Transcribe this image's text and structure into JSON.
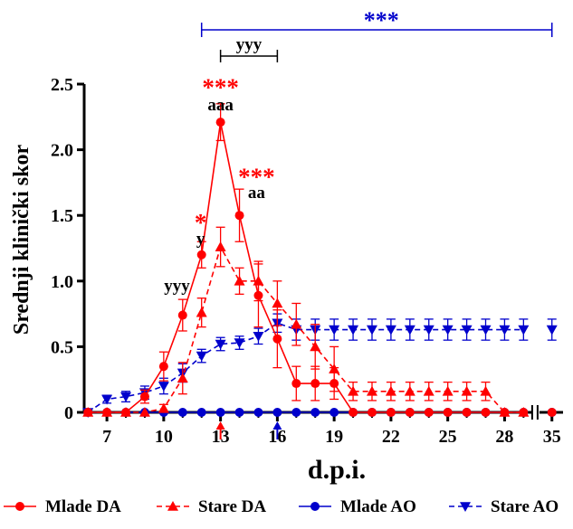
{
  "chart_data": {
    "type": "line",
    "xlabel": "d.p.i.",
    "ylabel": "Srednji klinički skor",
    "ylim": [
      0,
      2.5
    ],
    "y_ticks": [
      "0",
      "0.5",
      "1.0",
      "1.5",
      "2.0",
      "2.5"
    ],
    "x_ticks": [
      "7",
      "10",
      "13",
      "16",
      "19",
      "22",
      "25",
      "28",
      "35"
    ],
    "x_minor_ticks": [
      "8",
      "9",
      "11",
      "12",
      "14",
      "15",
      "17",
      "18",
      "20",
      "21",
      "23",
      "24",
      "26",
      "27",
      "29"
    ],
    "x_range": [
      5.8,
      30.8
    ],
    "x_break_after": 29.6,
    "series": [
      {
        "name": "Mlade DA",
        "color": "#ff0000",
        "marker": "circle",
        "dashed": false,
        "x": [
          6,
          7,
          8,
          9,
          10,
          11,
          12,
          13,
          14,
          15,
          16,
          17,
          18,
          19,
          20,
          21,
          22,
          23,
          24,
          25,
          26,
          27,
          28,
          29,
          35
        ],
        "y": [
          0,
          0,
          0,
          0.12,
          0.35,
          0.74,
          1.2,
          2.21,
          1.5,
          0.89,
          0.56,
          0.22,
          0.22,
          0.22,
          0,
          0,
          0,
          0,
          0,
          0,
          0,
          0,
          0,
          0,
          0
        ],
        "err": [
          0,
          0,
          0,
          0.05,
          0.11,
          0.12,
          0.1,
          0.14,
          0.2,
          0.24,
          0.22,
          0.13,
          0.13,
          0.12,
          0,
          0,
          0,
          0,
          0,
          0,
          0,
          0,
          0,
          0,
          0
        ]
      },
      {
        "name": "Stare DA",
        "color": "#ff0000",
        "marker": "triangle-up",
        "dashed": true,
        "x": [
          6,
          7,
          8,
          9,
          10,
          11,
          12,
          13,
          14,
          15,
          16,
          17,
          18,
          19,
          20,
          21,
          22,
          23,
          24,
          25,
          26,
          27,
          28,
          29
        ],
        "y": [
          0,
          0,
          0,
          0,
          0.03,
          0.26,
          0.76,
          1.26,
          1.0,
          1.0,
          0.83,
          0.67,
          0.5,
          0.33,
          0.16,
          0.16,
          0.16,
          0.16,
          0.16,
          0.16,
          0.16,
          0.16,
          0,
          0
        ],
        "err": [
          0,
          0,
          0,
          0,
          0.03,
          0.12,
          0.11,
          0.15,
          0.1,
          0.15,
          0.17,
          0.16,
          0.17,
          0.17,
          0.07,
          0.07,
          0.07,
          0.07,
          0.07,
          0.07,
          0.07,
          0.07,
          0,
          0
        ]
      },
      {
        "name": "Mlade AO",
        "color": "#0000cc",
        "marker": "circle",
        "dashed": false,
        "x": [
          6,
          7,
          8,
          9,
          10,
          11,
          12,
          13,
          14,
          15,
          16,
          17,
          18,
          19,
          20,
          21,
          22,
          23,
          24,
          25,
          26,
          27,
          28,
          29,
          35
        ],
        "y": [
          0,
          0,
          0,
          0,
          0,
          0,
          0,
          0,
          0,
          0,
          0,
          0,
          0,
          0,
          0,
          0,
          0,
          0,
          0,
          0,
          0,
          0,
          0,
          0,
          0
        ],
        "err": [
          0,
          0,
          0,
          0,
          0,
          0,
          0,
          0,
          0,
          0,
          0,
          0,
          0,
          0,
          0,
          0,
          0,
          0,
          0,
          0,
          0,
          0,
          0,
          0,
          0
        ]
      },
      {
        "name": "Stare AO",
        "color": "#0000cc",
        "marker": "triangle-down",
        "dashed": true,
        "x": [
          6,
          7,
          8,
          9,
          10,
          11,
          12,
          13,
          14,
          15,
          16,
          17,
          18,
          19,
          20,
          21,
          22,
          23,
          24,
          25,
          26,
          27,
          28,
          29,
          35
        ],
        "y": [
          0,
          0.1,
          0.12,
          0.15,
          0.2,
          0.3,
          0.43,
          0.52,
          0.53,
          0.58,
          0.68,
          0.63,
          0.63,
          0.63,
          0.63,
          0.63,
          0.63,
          0.63,
          0.63,
          0.63,
          0.63,
          0.63,
          0.63,
          0.63,
          0.63
        ],
        "err": [
          0,
          0.03,
          0.04,
          0.05,
          0.06,
          0.07,
          0.05,
          0.05,
          0.05,
          0.06,
          0.07,
          0.08,
          0.08,
          0.08,
          0.08,
          0.08,
          0.08,
          0.08,
          0.08,
          0.08,
          0.08,
          0.08,
          0.08,
          0.08,
          0.08
        ]
      }
    ],
    "annotations": {
      "brackets": [
        {
          "label": "***",
          "x_from": 12,
          "x_to": 35,
          "color": "#0000cc"
        },
        {
          "label": "yyy",
          "x_from": 13,
          "x_to": 16,
          "color": "#000000"
        }
      ],
      "labels": [
        {
          "text": "***",
          "x": 13,
          "y": 2.51,
          "color": "#ff0000",
          "size": "large"
        },
        {
          "text": "aaa",
          "x": 13,
          "y": 2.35,
          "color": "#000000",
          "size": "normal"
        },
        {
          "text": "***",
          "x": 14.9,
          "y": 1.83,
          "color": "#ff0000",
          "size": "large"
        },
        {
          "text": "aa",
          "x": 14.9,
          "y": 1.68,
          "color": "#000000",
          "size": "normal"
        },
        {
          "text": "*",
          "x": 11.95,
          "y": 1.48,
          "color": "#ff0000",
          "size": "large"
        },
        {
          "text": "y",
          "x": 11.95,
          "y": 1.33,
          "color": "#000000",
          "size": "normal"
        },
        {
          "text": "yyy",
          "x": 10.7,
          "y": 0.97,
          "color": "#000000",
          "size": "normal"
        }
      ],
      "arrows": [
        {
          "x": 13,
          "color": "#ff0000"
        },
        {
          "x": 16,
          "color": "#0000cc"
        }
      ]
    },
    "legend": {
      "position": "bottom",
      "items": [
        {
          "label": "Mlade DA",
          "color": "#ff0000",
          "marker": "circle",
          "dashed": false
        },
        {
          "label": "Stare DA",
          "color": "#ff0000",
          "marker": "triangle-up",
          "dashed": true
        },
        {
          "label": "Mlade AO",
          "color": "#0000cc",
          "marker": "circle",
          "dashed": false
        },
        {
          "label": "Stare AO",
          "color": "#0000cc",
          "marker": "triangle-down",
          "dashed": true
        }
      ]
    }
  }
}
